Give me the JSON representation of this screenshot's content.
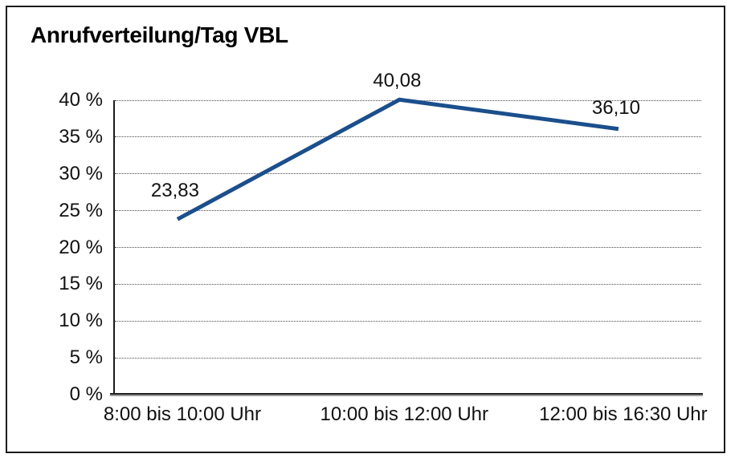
{
  "chart": {
    "title": "Anrufverteilung/Tag VBL"
  },
  "chart_data": {
    "type": "line",
    "title": "Anrufverteilung/Tag VBL",
    "categories": [
      "8:00 bis 10:00 Uhr",
      "10:00 bis 12:00 Uhr",
      "12:00 bis 16:30 Uhr"
    ],
    "series": [
      {
        "name": "Anrufverteilung",
        "values": [
          23.83,
          40.08,
          36.1
        ],
        "value_labels": [
          "23,83",
          "40,08",
          "36,10"
        ],
        "color": "#1b4f8c"
      }
    ],
    "xlabel": "",
    "ylabel": "",
    "ylim": [
      0,
      40
    ],
    "yticks": [
      {
        "value": 40,
        "label": "40 %"
      },
      {
        "value": 35,
        "label": "35 %"
      },
      {
        "value": 30,
        "label": "30 %"
      },
      {
        "value": 25,
        "label": "25 %"
      },
      {
        "value": 20,
        "label": "20 %"
      },
      {
        "value": 15,
        "label": "15 %"
      },
      {
        "value": 10,
        "label": "10 %"
      },
      {
        "value": 5,
        "label": "5 %"
      },
      {
        "value": 0,
        "label": "0 %"
      }
    ],
    "grid": "horizontal-dotted",
    "legend": "none",
    "colors": {
      "line": "#1b4f8c",
      "text": "#111111",
      "axis": "#1c1c1c",
      "grid": "#4a4a4a",
      "background": "#ffffff"
    }
  }
}
